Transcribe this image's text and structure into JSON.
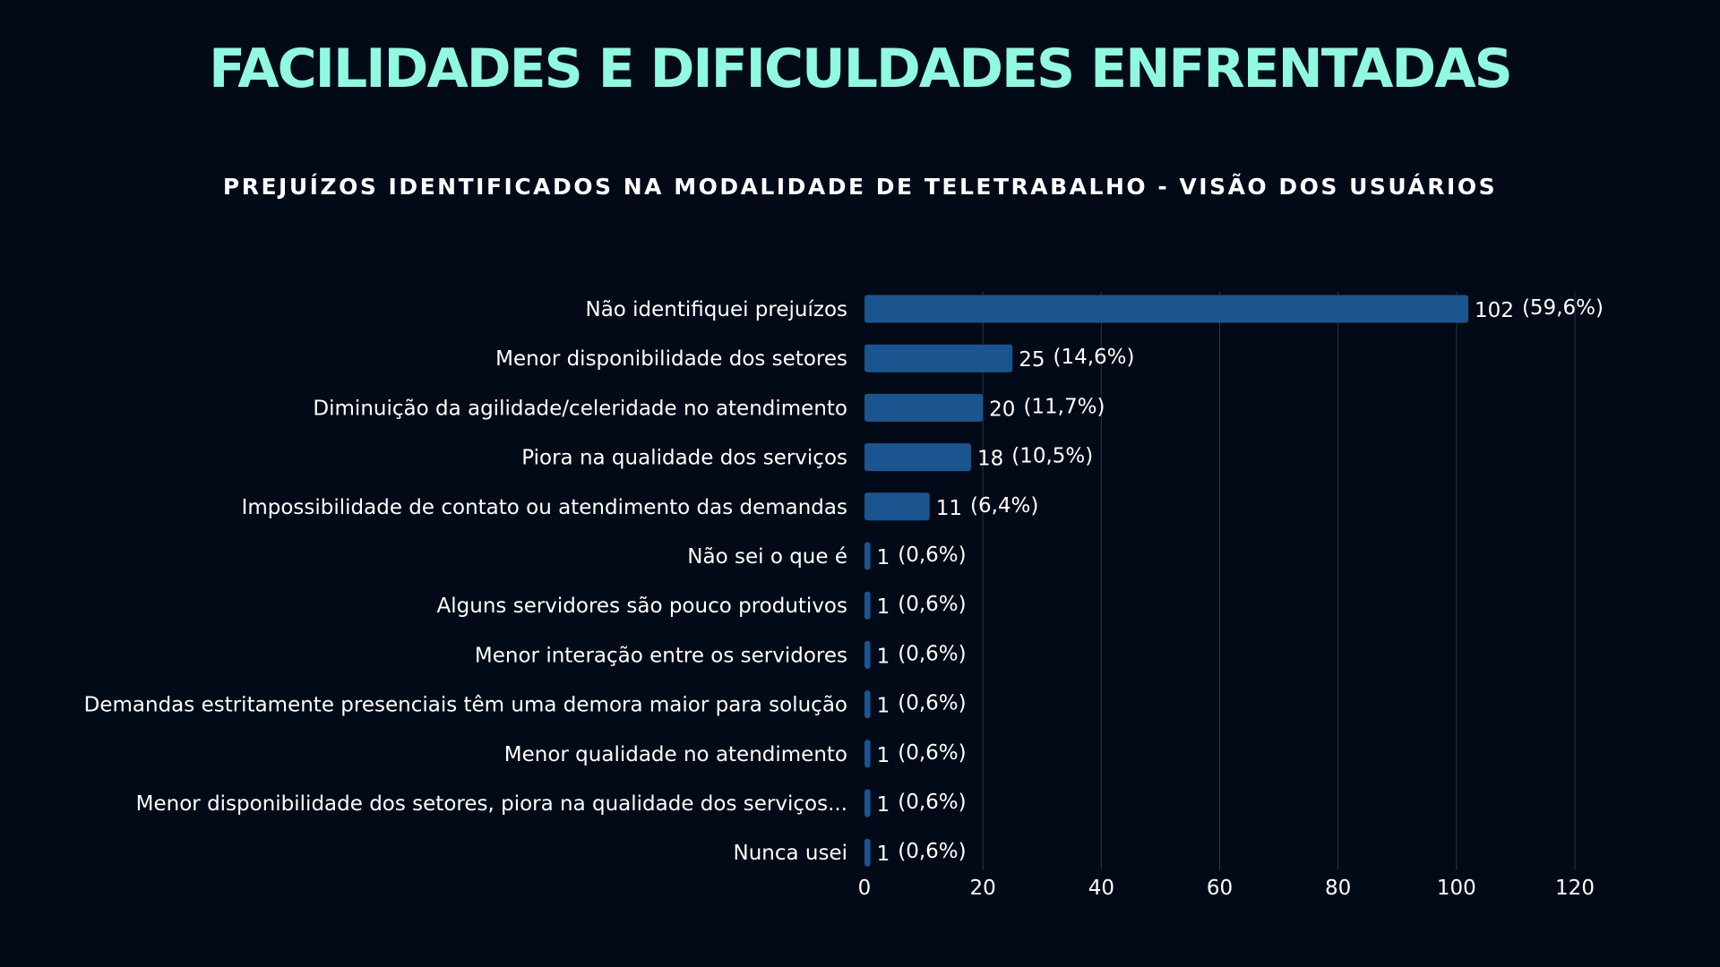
{
  "header": {
    "title": "FACILIDADES E DIFICULDADES ENFRENTADAS"
  },
  "colors": {
    "background": "#020a18",
    "title": "#8ffae0",
    "bar": "#1a5590",
    "grid": "#2a3446",
    "text": "#ffffff"
  },
  "chart_data": {
    "type": "bar",
    "orientation": "horizontal",
    "title": "PREJUÍZOS IDENTIFICADOS NA MODALIDADE DE TELETRABALHO - VISÃO DOS USUÁRIOS",
    "categories": [
      "Não identifiquei prejuízos",
      "Menor disponibilidade dos setores",
      "Diminuição da agilidade/celeridade no atendimento",
      "Piora na qualidade dos serviços",
      "Impossibilidade de contato ou atendimento das demandas",
      "Não sei o que é",
      "Alguns servidores são pouco produtivos",
      "Menor interação entre os servidores",
      "Demandas estritamente presenciais têm uma demora maior para solução",
      "Menor qualidade no atendimento",
      "Menor disponibilidade dos setores, piora na qualidade dos serviços...",
      "Nunca usei"
    ],
    "values": [
      102,
      25,
      20,
      18,
      11,
      1,
      1,
      1,
      1,
      1,
      1,
      1
    ],
    "percent_labels": [
      "(59,6%)",
      "(14,6%)",
      "(11,7%)",
      "(10,5%)",
      "(6,4%)",
      "(0,6%)",
      "(0,6%)",
      "(0,6%)",
      "(0,6%)",
      "(0,6%)",
      "(0,6%)",
      "(0,6%)"
    ],
    "xlim": [
      0,
      120
    ],
    "xticks": [
      0,
      20,
      40,
      60,
      80,
      100,
      120
    ],
    "grid": true,
    "xlabel": "",
    "ylabel": ""
  }
}
